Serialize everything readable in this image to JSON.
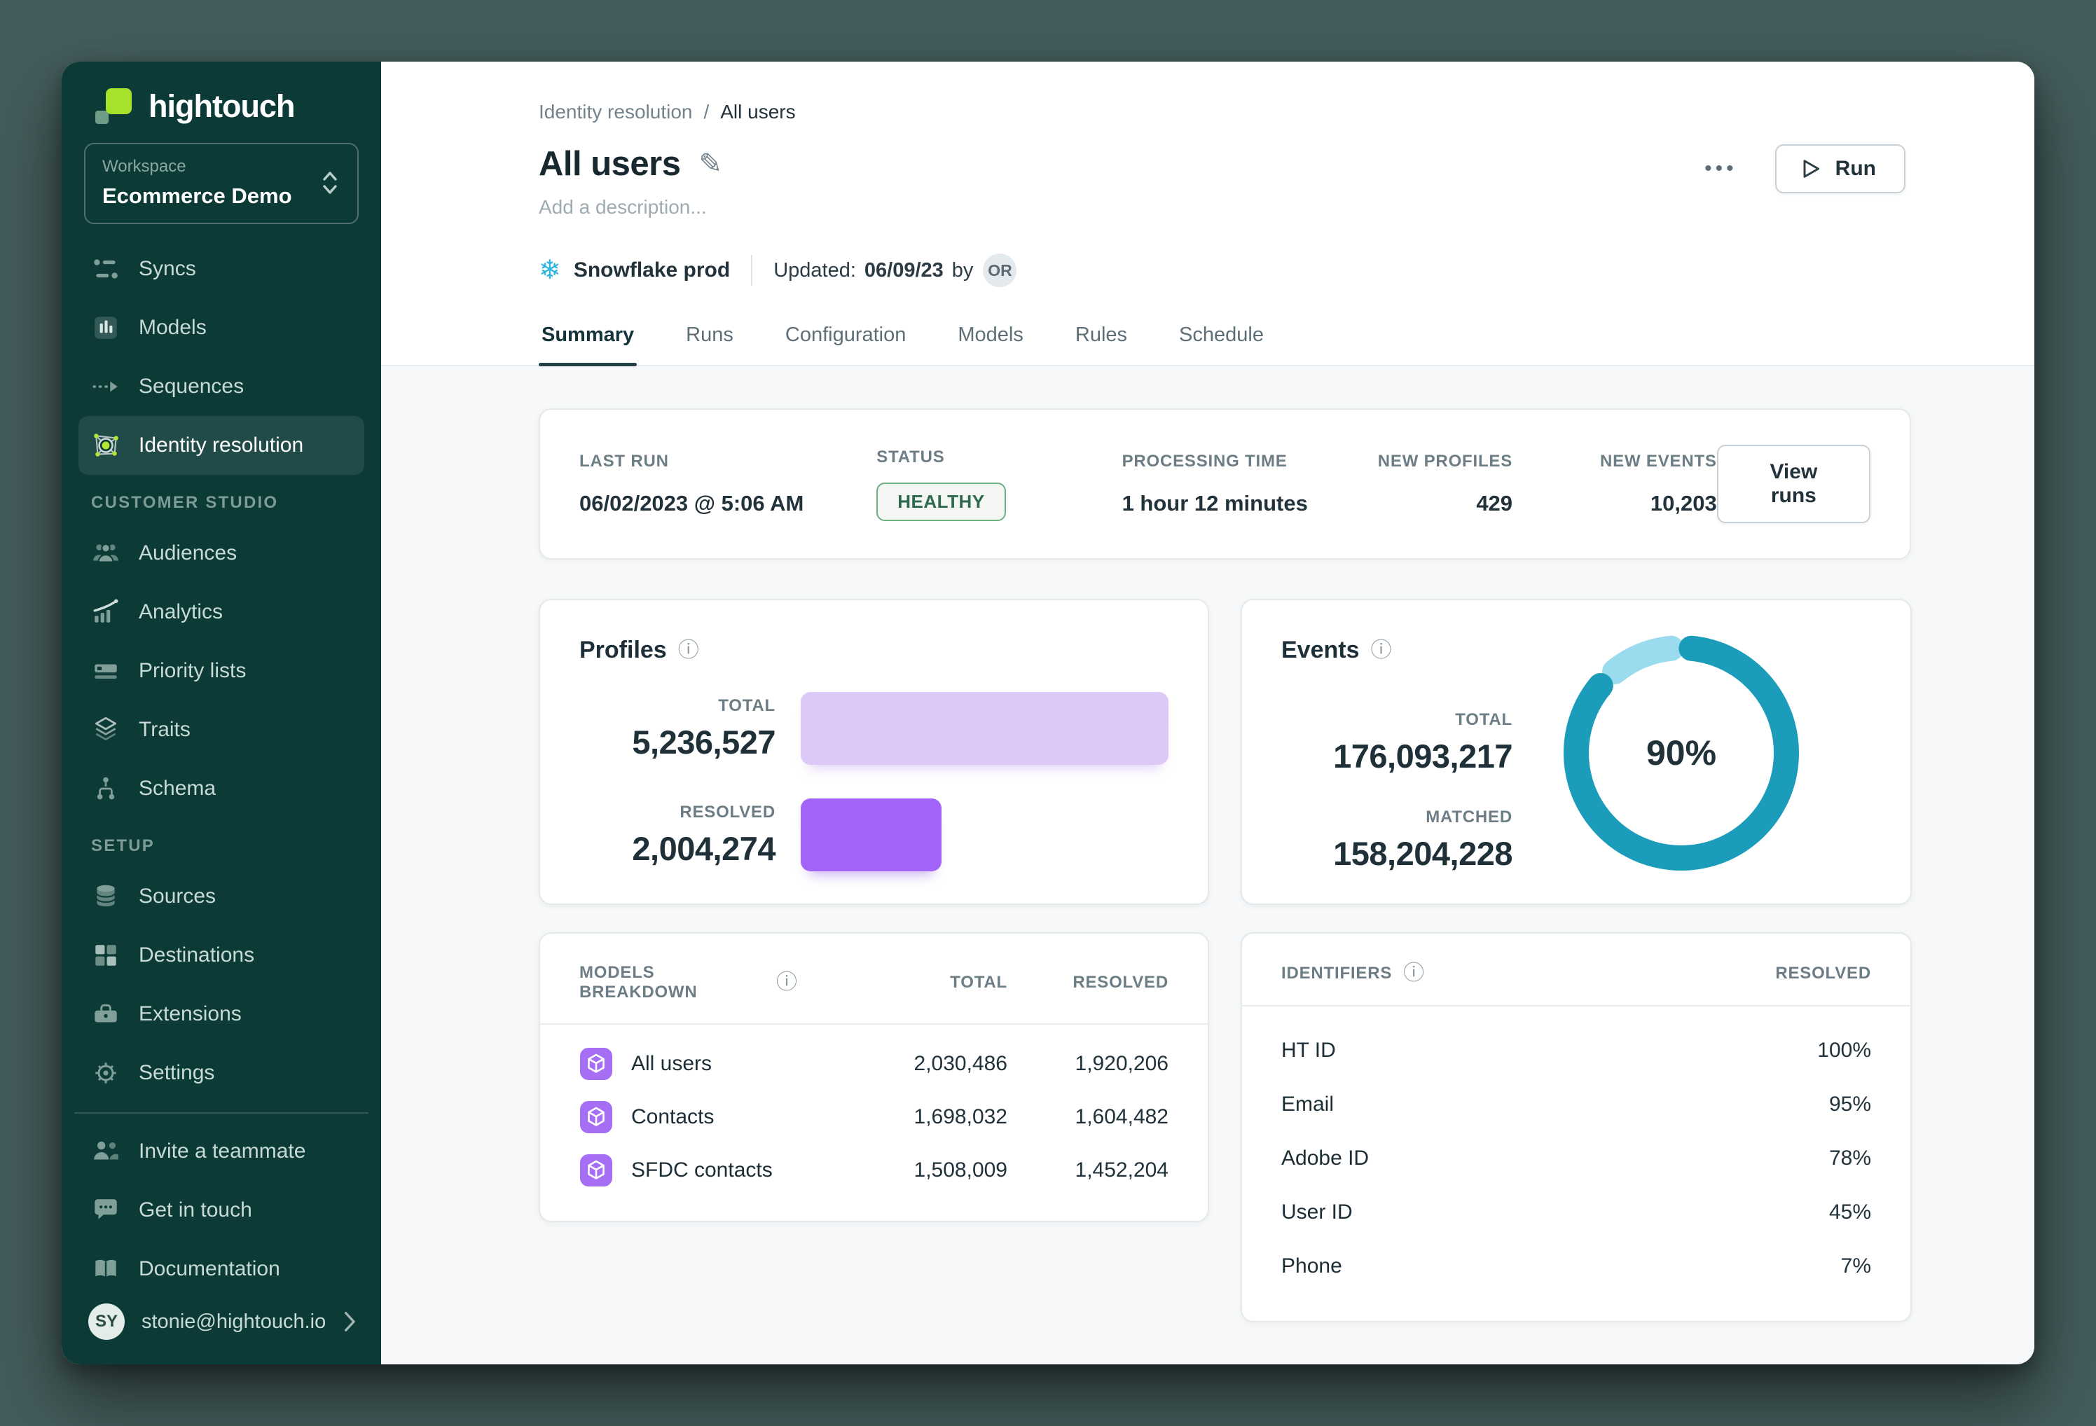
{
  "icons": {
    "snowflake": "❄",
    "pencil": "✎",
    "info": "ⓘ",
    "more": "•••"
  },
  "colors": {
    "sidebar_bg": "#0c3a36",
    "accent_lime": "#a6e12b",
    "teal_arc": "#1b9cba",
    "light_arc": "#9adced",
    "purple_dark": "#a164f6",
    "purple_light": "#dcc9f8",
    "healthy_green": "#2f6a4d",
    "snowflake_blue": "#2bb5e0"
  },
  "sidebar": {
    "logo_text": "hightouch",
    "workspace": {
      "label": "Workspace",
      "value": "Ecommerce Demo"
    },
    "nav_main": [
      {
        "label": "Syncs",
        "icon": "syncs"
      },
      {
        "label": "Models",
        "icon": "models"
      },
      {
        "label": "Sequences",
        "icon": "sequences"
      },
      {
        "label": "Identity resolution",
        "icon": "identity-resolution",
        "active": true
      }
    ],
    "customer_studio": {
      "section_label": "CUSTOMER STUDIO",
      "items": [
        {
          "label": "Audiences",
          "icon": "audiences"
        },
        {
          "label": "Analytics",
          "icon": "analytics"
        },
        {
          "label": "Priority lists",
          "icon": "priority-lists"
        },
        {
          "label": "Traits",
          "icon": "traits"
        },
        {
          "label": "Schema",
          "icon": "schema"
        }
      ]
    },
    "setup": {
      "section_label": "SETUP",
      "items": [
        {
          "label": "Sources",
          "icon": "sources"
        },
        {
          "label": "Destinations",
          "icon": "destinations"
        },
        {
          "label": "Extensions",
          "icon": "extensions"
        },
        {
          "label": "Settings",
          "icon": "settings"
        }
      ]
    },
    "footer_items": [
      {
        "label": "Invite a teammate",
        "icon": "invite"
      },
      {
        "label": "Get in touch",
        "icon": "chat"
      },
      {
        "label": "Documentation",
        "icon": "docs"
      }
    ],
    "user": {
      "initials": "SY",
      "email": "stonie@hightouch.io"
    }
  },
  "header": {
    "breadcrumb": {
      "parent": "Identity resolution",
      "separator": "/",
      "current": "All users"
    },
    "title": "All users",
    "description_placeholder": "Add a description...",
    "source_name": "Snowflake prod",
    "updated_prefix": "Updated:",
    "updated_date": "06/09/23",
    "updated_by_word": "by",
    "updated_by_initials": "OR",
    "run_label": "Run"
  },
  "tabs": {
    "items": [
      {
        "label": "Summary",
        "active": true
      },
      {
        "label": "Runs"
      },
      {
        "label": "Configuration"
      },
      {
        "label": "Models"
      },
      {
        "label": "Rules"
      },
      {
        "label": "Schedule"
      }
    ]
  },
  "run_stats": {
    "last_run_label": "LAST RUN",
    "last_run_value": "06/02/2023 @ 5:06 AM",
    "status_label": "STATUS",
    "status_value": "HEALTHY",
    "processing_label": "PROCESSING TIME",
    "processing_value": "1 hour 12 minutes",
    "new_profiles_label": "NEW PROFILES",
    "new_profiles_value": "429",
    "new_events_label": "NEW EVENTS",
    "new_events_value": "10,203",
    "view_runs_label": "View runs"
  },
  "profiles_card": {
    "title": "Profiles",
    "total_label": "TOTAL",
    "total_value": "5,236,527",
    "total_num": 5236527,
    "resolved_label": "RESOLVED",
    "resolved_value": "2,004,274",
    "resolved_num": 2004274
  },
  "events_card": {
    "title": "Events",
    "total_label": "TOTAL",
    "total_value": "176,093,217",
    "total_num": 176093217,
    "matched_label": "MATCHED",
    "matched_value": "158,204,228",
    "matched_num": 158204228,
    "percent_label": "90%",
    "percent_value": 90
  },
  "models_breakdown": {
    "title": "MODELS BREAKDOWN",
    "col_total": "TOTAL",
    "col_resolved": "RESOLVED",
    "rows": [
      {
        "name": "All users",
        "total": "2,030,486",
        "resolved": "1,920,206"
      },
      {
        "name": "Contacts",
        "total": "1,698,032",
        "resolved": "1,604,482"
      },
      {
        "name": "SFDC contacts",
        "total": "1,508,009",
        "resolved": "1,452,204"
      }
    ]
  },
  "identifiers": {
    "title": "IDENTIFIERS",
    "col_resolved": "RESOLVED",
    "rows": [
      {
        "name": "HT ID",
        "value": "100%"
      },
      {
        "name": "Email",
        "value": "95%"
      },
      {
        "name": "Adobe ID",
        "value": "78%"
      },
      {
        "name": "User ID",
        "value": "45%"
      },
      {
        "name": "Phone",
        "value": "7%"
      }
    ]
  }
}
